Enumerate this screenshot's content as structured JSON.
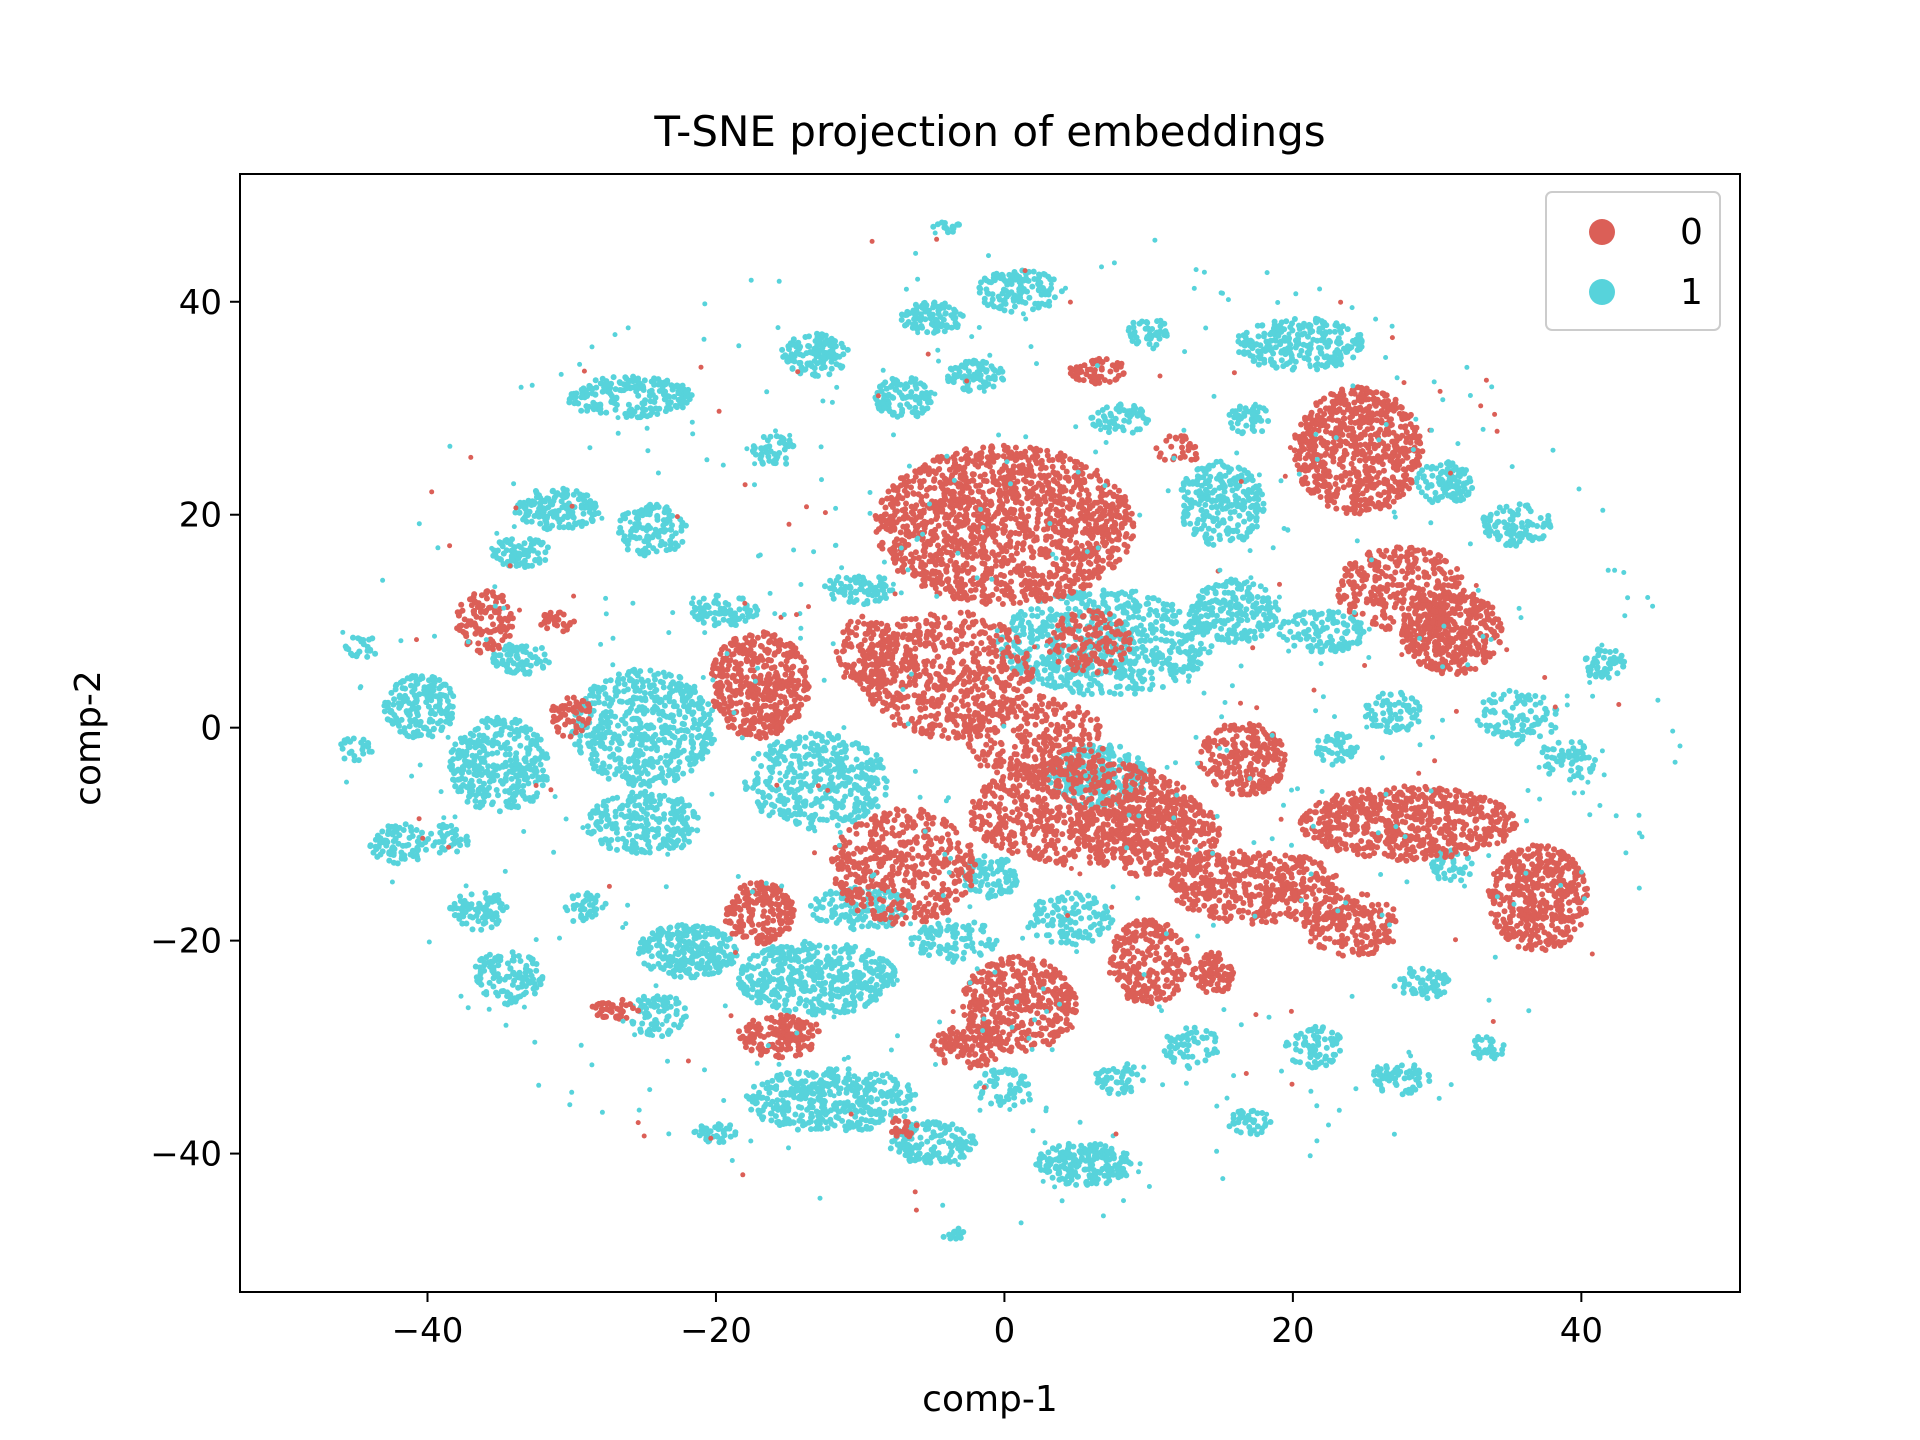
{
  "chart_data": {
    "type": "scatter",
    "title": "T-SNE projection of embeddings",
    "xlabel": "comp-1",
    "ylabel": "comp-2",
    "xlim": [
      -53,
      51
    ],
    "ylim": [
      -53,
      52
    ],
    "xticks": [
      -40,
      -20,
      0,
      20,
      40
    ],
    "yticks": [
      -40,
      -20,
      0,
      20,
      40
    ],
    "xtick_labels": [
      "−40",
      "−20",
      "0",
      "20",
      "40"
    ],
    "ytick_labels": [
      "−40",
      "−20",
      "0",
      "20",
      "40"
    ],
    "grid": false,
    "legend_placement": "top-right",
    "series": [
      {
        "name": "0",
        "color": "#db5f57",
        "clusters": [
          {
            "x": 0,
            "y": 19,
            "rx": 9,
            "ry": 7.5,
            "n": 1500
          },
          {
            "x": 24.5,
            "y": 26,
            "rx": 4.5,
            "ry": 6,
            "n": 700
          },
          {
            "x": 27.5,
            "y": 13,
            "rx": 4.5,
            "ry": 4,
            "n": 300
          },
          {
            "x": 31,
            "y": 9,
            "rx": 3.5,
            "ry": 4,
            "n": 400
          },
          {
            "x": -17,
            "y": 4,
            "rx": 3.5,
            "ry": 5,
            "n": 450
          },
          {
            "x": -9.5,
            "y": 7,
            "rx": 2.2,
            "ry": 3.5,
            "n": 150
          },
          {
            "x": -36,
            "y": 10,
            "rx": 2,
            "ry": 3,
            "n": 120
          },
          {
            "x": 16.5,
            "y": -3,
            "rx": 3,
            "ry": 3.5,
            "n": 250
          },
          {
            "x": 28,
            "y": -9,
            "rx": 7.5,
            "ry": 3.5,
            "n": 650
          },
          {
            "x": 17.5,
            "y": -15,
            "rx": 6,
            "ry": 3.5,
            "n": 450
          },
          {
            "x": 37,
            "y": -16,
            "rx": 3.5,
            "ry": 5,
            "n": 450
          },
          {
            "x": 24,
            "y": -18.5,
            "rx": 3.5,
            "ry": 3,
            "n": 200
          },
          {
            "x": 10,
            "y": -22,
            "rx": 2.8,
            "ry": 4,
            "n": 250
          },
          {
            "x": 14.5,
            "y": -23,
            "rx": 1.5,
            "ry": 2,
            "n": 80
          },
          {
            "x": 1,
            "y": -26,
            "rx": 4,
            "ry": 4.5,
            "n": 400
          },
          {
            "x": -7,
            "y": -13,
            "rx": 5,
            "ry": 5.5,
            "n": 450
          },
          {
            "x": -17,
            "y": -17.5,
            "rx": 2.5,
            "ry": 3,
            "n": 200
          },
          {
            "x": -15.5,
            "y": -29,
            "rx": 3,
            "ry": 2,
            "n": 150
          },
          {
            "x": 5.5,
            "y": -8,
            "rx": 8,
            "ry": 5,
            "n": 700
          },
          {
            "x": -4,
            "y": 5,
            "rx": 6,
            "ry": 6,
            "n": 600
          },
          {
            "x": 2,
            "y": -1,
            "rx": 5,
            "ry": 4,
            "n": 300
          },
          {
            "x": 10,
            "y": -10,
            "rx": 5,
            "ry": 4,
            "n": 350
          },
          {
            "x": -2.5,
            "y": -30,
            "rx": 2.5,
            "ry": 2,
            "n": 120
          },
          {
            "x": 6.5,
            "y": 33.5,
            "rx": 2,
            "ry": 1.2,
            "n": 60
          },
          {
            "x": -30,
            "y": 1,
            "rx": 1.5,
            "ry": 2,
            "n": 60
          },
          {
            "x": -27,
            "y": -26.5,
            "rx": 1.8,
            "ry": 1,
            "n": 40
          },
          {
            "x": -31,
            "y": 10,
            "rx": 1.2,
            "ry": 1.2,
            "n": 30
          },
          {
            "x": -7,
            "y": -37.5,
            "rx": 1,
            "ry": 1,
            "n": 20
          },
          {
            "x": 12,
            "y": 26,
            "rx": 1.5,
            "ry": 1.5,
            "n": 30
          },
          {
            "x": 6,
            "y": 8,
            "rx": 3,
            "ry": 3,
            "n": 150
          }
        ]
      },
      {
        "name": "1",
        "color": "#57d3db",
        "clusters": [
          {
            "x": 7,
            "y": 8,
            "rx": 7.5,
            "ry": 5,
            "n": 650
          },
          {
            "x": -25,
            "y": 0,
            "rx": 5,
            "ry": 5.5,
            "n": 550
          },
          {
            "x": -35,
            "y": -3.5,
            "rx": 3.5,
            "ry": 4.5,
            "n": 350
          },
          {
            "x": -40.5,
            "y": 2,
            "rx": 2.5,
            "ry": 3,
            "n": 180
          },
          {
            "x": -13,
            "y": -5,
            "rx": 5,
            "ry": 4.5,
            "n": 400
          },
          {
            "x": -25,
            "y": -9,
            "rx": 4,
            "ry": 3,
            "n": 250
          },
          {
            "x": -13,
            "y": -23.5,
            "rx": 5.5,
            "ry": 3.5,
            "n": 450
          },
          {
            "x": -22,
            "y": -21,
            "rx": 3.5,
            "ry": 2.5,
            "n": 250
          },
          {
            "x": -12,
            "y": -35,
            "rx": 6,
            "ry": 3,
            "n": 400
          },
          {
            "x": 5.5,
            "y": -41,
            "rx": 3.5,
            "ry": 2,
            "n": 200
          },
          {
            "x": -5,
            "y": -39,
            "rx": 3,
            "ry": 2,
            "n": 150
          },
          {
            "x": 6.5,
            "y": -4.5,
            "rx": 3.5,
            "ry": 3,
            "n": 250
          },
          {
            "x": 15,
            "y": 21,
            "rx": 3,
            "ry": 4,
            "n": 250
          },
          {
            "x": 16,
            "y": 11,
            "rx": 3,
            "ry": 3,
            "n": 200
          },
          {
            "x": 20.5,
            "y": 36,
            "rx": 4.5,
            "ry": 2.5,
            "n": 250
          },
          {
            "x": -26,
            "y": 31,
            "rx": 4.5,
            "ry": 2,
            "n": 200
          },
          {
            "x": -13,
            "y": 35,
            "rx": 2.5,
            "ry": 2,
            "n": 120
          },
          {
            "x": -7,
            "y": 31,
            "rx": 2,
            "ry": 2,
            "n": 100
          },
          {
            "x": -5,
            "y": 38.5,
            "rx": 2.2,
            "ry": 1.5,
            "n": 100
          },
          {
            "x": 1,
            "y": 41,
            "rx": 3,
            "ry": 2,
            "n": 120
          },
          {
            "x": -2,
            "y": 33,
            "rx": 2,
            "ry": 1.5,
            "n": 80
          },
          {
            "x": -31,
            "y": 20.5,
            "rx": 3,
            "ry": 2,
            "n": 150
          },
          {
            "x": -24.5,
            "y": 18.5,
            "rx": 2.5,
            "ry": 2.5,
            "n": 120
          },
          {
            "x": -33.5,
            "y": 16.5,
            "rx": 2,
            "ry": 1.5,
            "n": 80
          },
          {
            "x": -33.5,
            "y": 6.5,
            "rx": 2,
            "ry": 1.5,
            "n": 80
          },
          {
            "x": -42,
            "y": -11,
            "rx": 2,
            "ry": 2,
            "n": 80
          },
          {
            "x": -36.5,
            "y": -17,
            "rx": 2,
            "ry": 2,
            "n": 80
          },
          {
            "x": -34.5,
            "y": -23.5,
            "rx": 2.5,
            "ry": 2.5,
            "n": 120
          },
          {
            "x": -24,
            "y": -27,
            "rx": 2,
            "ry": 2,
            "n": 80
          },
          {
            "x": -19.5,
            "y": 11,
            "rx": 2.5,
            "ry": 1.5,
            "n": 80
          },
          {
            "x": 35.5,
            "y": 19,
            "rx": 2.5,
            "ry": 2,
            "n": 100
          },
          {
            "x": 30.5,
            "y": 23,
            "rx": 2,
            "ry": 2,
            "n": 100
          },
          {
            "x": 35.5,
            "y": 1,
            "rx": 3,
            "ry": 2.5,
            "n": 100
          },
          {
            "x": 27,
            "y": 1.5,
            "rx": 2,
            "ry": 2,
            "n": 80
          },
          {
            "x": 23,
            "y": -2,
            "rx": 1.5,
            "ry": 1.5,
            "n": 50
          },
          {
            "x": 41.5,
            "y": 6,
            "rx": 1.5,
            "ry": 1.5,
            "n": 50
          },
          {
            "x": 39,
            "y": -3,
            "rx": 2,
            "ry": 2,
            "n": 60
          },
          {
            "x": 22,
            "y": 9,
            "rx": 3,
            "ry": 2,
            "n": 120
          },
          {
            "x": 29,
            "y": -24,
            "rx": 2,
            "ry": 1.5,
            "n": 60
          },
          {
            "x": 27.5,
            "y": -33,
            "rx": 2,
            "ry": 1.5,
            "n": 60
          },
          {
            "x": 21.5,
            "y": -30,
            "rx": 2,
            "ry": 2,
            "n": 70
          },
          {
            "x": 13,
            "y": -30,
            "rx": 2,
            "ry": 2,
            "n": 60
          },
          {
            "x": 8,
            "y": -33,
            "rx": 1.8,
            "ry": 1.5,
            "n": 50
          },
          {
            "x": 17,
            "y": -37,
            "rx": 1.5,
            "ry": 1.5,
            "n": 40
          },
          {
            "x": 33.5,
            "y": -30,
            "rx": 1.2,
            "ry": 1.2,
            "n": 30
          },
          {
            "x": 0,
            "y": -34,
            "rx": 2,
            "ry": 2,
            "n": 60
          },
          {
            "x": -20,
            "y": -38,
            "rx": 1.5,
            "ry": 1,
            "n": 40
          },
          {
            "x": 4.5,
            "y": -18,
            "rx": 3,
            "ry": 2.5,
            "n": 120
          },
          {
            "x": -3.5,
            "y": -20,
            "rx": 3,
            "ry": 2,
            "n": 100
          },
          {
            "x": -1,
            "y": -14,
            "rx": 2,
            "ry": 2,
            "n": 100
          },
          {
            "x": -10,
            "y": 13,
            "rx": 2.5,
            "ry": 1.5,
            "n": 80
          },
          {
            "x": 8,
            "y": 29,
            "rx": 2,
            "ry": 1.5,
            "n": 60
          },
          {
            "x": 10,
            "y": 37,
            "rx": 1.5,
            "ry": 1.5,
            "n": 50
          },
          {
            "x": 17,
            "y": 29,
            "rx": 1.5,
            "ry": 1.5,
            "n": 50
          },
          {
            "x": -16,
            "y": 26,
            "rx": 1.5,
            "ry": 1.5,
            "n": 50
          },
          {
            "x": -38.5,
            "y": -10.5,
            "rx": 1.5,
            "ry": 1.5,
            "n": 40
          },
          {
            "x": -44.5,
            "y": 7.5,
            "rx": 1.2,
            "ry": 1.2,
            "n": 25
          },
          {
            "x": -45,
            "y": -2,
            "rx": 1.2,
            "ry": 1.2,
            "n": 25
          },
          {
            "x": -4,
            "y": 47,
            "rx": 1,
            "ry": 0.5,
            "n": 15
          },
          {
            "x": -3.5,
            "y": -47.5,
            "rx": 1,
            "ry": 0.5,
            "n": 15
          },
          {
            "x": -10,
            "y": -17,
            "rx": 3.5,
            "ry": 2,
            "n": 120
          },
          {
            "x": -29,
            "y": -17,
            "rx": 1.5,
            "ry": 1.5,
            "n": 40
          },
          {
            "x": 31,
            "y": -13,
            "rx": 1.5,
            "ry": 1.5,
            "n": 40
          }
        ]
      }
    ]
  }
}
